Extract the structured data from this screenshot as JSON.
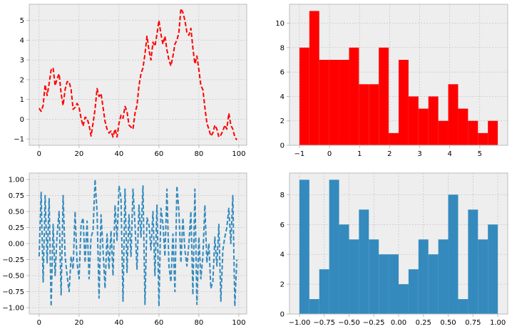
{
  "colors": {
    "red": "#ff0000",
    "blue": "#348abd",
    "panel_bg": "#eeeeee",
    "grid": "#b2b2b2",
    "axis": "#bcbcbc"
  },
  "chart_data": [
    {
      "type": "line",
      "title": "",
      "xlabel": "",
      "ylabel": "",
      "xlim": [
        -4.95,
        103.95
      ],
      "ylim": [
        -1.32,
        5.82
      ],
      "grid": true,
      "legend": "none",
      "x_ticks": [
        0,
        20,
        40,
        60,
        80,
        100
      ],
      "y_ticks": [
        -1,
        0,
        1,
        2,
        3,
        4,
        5
      ],
      "series": [
        {
          "color": "#ff0000",
          "style": "dashed",
          "x": [
            0,
            1,
            2,
            3,
            4,
            5,
            6,
            7,
            8,
            9,
            10,
            11,
            12,
            13,
            14,
            15,
            16,
            17,
            18,
            19,
            20,
            21,
            22,
            23,
            24,
            25,
            26,
            27,
            28,
            29,
            30,
            31,
            32,
            33,
            34,
            35,
            36,
            37,
            38,
            39,
            40,
            41,
            42,
            43,
            44,
            45,
            46,
            47,
            48,
            49,
            50,
            51,
            52,
            53,
            54,
            55,
            56,
            57,
            58,
            59,
            60,
            61,
            62,
            63,
            64,
            65,
            66,
            67,
            68,
            69,
            70,
            71,
            72,
            73,
            74,
            75,
            76,
            77,
            78,
            79,
            80,
            81,
            82,
            83,
            84,
            85,
            86,
            87,
            88,
            89,
            90,
            91,
            92,
            93,
            94,
            95,
            96,
            97,
            98,
            99
          ],
          "values": [
            0.55,
            0.4,
            0.7,
            1.75,
            1.2,
            1.8,
            2.5,
            2.6,
            1.7,
            2.05,
            2.3,
            1.3,
            0.7,
            1.5,
            1.9,
            1.9,
            1.5,
            0.5,
            0.6,
            0.8,
            0.6,
            0.05,
            -0.35,
            0.1,
            0.05,
            -0.3,
            -0.85,
            -0.2,
            0.5,
            1.55,
            1.15,
            1.3,
            0.6,
            -0.1,
            -0.5,
            -0.7,
            -0.6,
            -0.9,
            -0.5,
            -0.9,
            -0.2,
            0.2,
            0.05,
            0.65,
            0.4,
            -0.3,
            -0.4,
            -0.5,
            0.3,
            0.7,
            1.7,
            2.3,
            2.6,
            3.3,
            4.2,
            3.5,
            3.0,
            3.9,
            3.7,
            4.3,
            5.0,
            4.3,
            3.8,
            4.2,
            3.5,
            3.0,
            2.7,
            3.2,
            3.8,
            4.0,
            4.4,
            5.6,
            5.4,
            5.0,
            4.4,
            4.25,
            4.6,
            3.6,
            2.8,
            3.2,
            2.5,
            1.7,
            1.5,
            0.6,
            -0.2,
            -0.5,
            -0.85,
            -0.7,
            -0.3,
            -0.5,
            -0.9,
            -0.8,
            -0.6,
            -0.3,
            -0.5,
            0.3,
            -0.3,
            -0.5,
            -0.9,
            -1.05
          ]
        }
      ]
    },
    {
      "type": "bar",
      "title": "",
      "xlabel": "",
      "ylabel": "",
      "xlim": [
        -1.33,
        5.93
      ],
      "ylim": [
        0,
        11.55
      ],
      "grid": true,
      "legend": "none",
      "x_ticks": [
        -1,
        0,
        1,
        2,
        3,
        4,
        5
      ],
      "y_ticks": [
        0,
        2,
        4,
        6,
        8,
        10
      ],
      "bin_edges": [
        -1.0,
        -0.67,
        -0.34,
        -0.01,
        0.32,
        0.65,
        0.98,
        1.31,
        1.64,
        1.97,
        2.3,
        2.63,
        2.96,
        3.29,
        3.62,
        3.95,
        4.28,
        4.61,
        4.94,
        5.27,
        5.6
      ],
      "counts": [
        8,
        11,
        7,
        7,
        7,
        8,
        5,
        5,
        8,
        1,
        7,
        4,
        3,
        4,
        2,
        5,
        3,
        2,
        1,
        2
      ],
      "color": "#ff0000"
    },
    {
      "type": "line",
      "title": "",
      "xlabel": "",
      "ylabel": "",
      "xlim": [
        -4.95,
        103.95
      ],
      "ylim": [
        -1.1,
        1.1
      ],
      "grid": true,
      "legend": "none",
      "x_ticks": [
        0,
        20,
        40,
        60,
        80,
        100
      ],
      "y_ticks": [
        -1.0,
        -0.75,
        -0.5,
        -0.25,
        0.0,
        0.25,
        0.5,
        0.75,
        1.0
      ],
      "y_tick_labels": [
        "−1.00",
        "−0.75",
        "−0.50",
        "−0.25",
        "0.00",
        "0.25",
        "0.50",
        "0.75",
        "1.00"
      ],
      "series": [
        {
          "color": "#348abd",
          "style": "dashed",
          "x": [
            0,
            1,
            2,
            3,
            4,
            5,
            6,
            7,
            8,
            9,
            10,
            11,
            12,
            13,
            14,
            15,
            16,
            17,
            18,
            19,
            20,
            21,
            22,
            23,
            24,
            25,
            26,
            27,
            28,
            29,
            30,
            31,
            32,
            33,
            34,
            35,
            36,
            37,
            38,
            39,
            40,
            41,
            42,
            43,
            44,
            45,
            46,
            47,
            48,
            49,
            50,
            51,
            52,
            53,
            54,
            55,
            56,
            57,
            58,
            59,
            60,
            61,
            62,
            63,
            64,
            65,
            66,
            67,
            68,
            69,
            70,
            71,
            72,
            73,
            74,
            75,
            76,
            77,
            78,
            79,
            80,
            81,
            82,
            83,
            84,
            85,
            86,
            87,
            88,
            89,
            90,
            91,
            92,
            93,
            94,
            95,
            96,
            97,
            98,
            99
          ],
          "values": [
            -0.2,
            0.8,
            -0.6,
            0.75,
            -0.3,
            0.7,
            -0.98,
            0.3,
            -0.5,
            0.15,
            0.5,
            -0.8,
            0.75,
            -0.2,
            -0.5,
            -0.75,
            -0.2,
            -0.4,
            0.5,
            -0.3,
            -0.55,
            0.3,
            0.4,
            -0.3,
            0.35,
            -0.55,
            0.1,
            0.2,
            1.0,
            0.5,
            -0.85,
            0.45,
            -0.1,
            -0.7,
            0.15,
            -0.4,
            0.2,
            -0.5,
            0.6,
            0.05,
            0.9,
            0.7,
            -0.9,
            0.85,
            -0.45,
            0.45,
            -0.2,
            0.85,
            0.3,
            -0.4,
            0.6,
            0.1,
            0.9,
            -0.95,
            0.4,
            0.3,
            -0.1,
            0.5,
            -0.5,
            0.6,
            -0.98,
            0.55,
            0.3,
            -0.2,
            0.85,
            -0.35,
            -0.6,
            0.15,
            -0.75,
            0.9,
            0.5,
            -0.3,
            0.4,
            -0.1,
            -0.35,
            0.0,
            0.5,
            -0.8,
            0.85,
            -0.95,
            0.1,
            -0.55,
            -0.2,
            0.6,
            -0.3,
            0.0,
            -0.7,
            -0.6,
            0.1,
            -0.35,
            0.3,
            -0.9,
            -0.1,
            0.1,
            0.25,
            0.55,
            0.0,
            0.75,
            -0.98,
            -0.25
          ]
        }
      ]
    },
    {
      "type": "bar",
      "title": "",
      "xlabel": "",
      "ylabel": "",
      "xlim": [
        -1.1,
        1.1
      ],
      "ylim": [
        0,
        9.45
      ],
      "grid": true,
      "legend": "none",
      "x_ticks": [
        -1.0,
        -0.75,
        -0.5,
        -0.25,
        0.0,
        0.25,
        0.5,
        0.75,
        1.0
      ],
      "x_tick_labels": [
        "−1.00",
        "−0.75",
        "−0.50",
        "−0.25",
        "0.00",
        "0.25",
        "0.50",
        "0.75",
        "1.00"
      ],
      "y_ticks": [
        0,
        2,
        4,
        6,
        8
      ],
      "bin_edges": [
        -1.0,
        -0.9,
        -0.8,
        -0.7,
        -0.6,
        -0.5,
        -0.4,
        -0.3,
        -0.2,
        -0.1,
        0.0,
        0.1,
        0.2,
        0.3,
        0.4,
        0.5,
        0.6,
        0.7,
        0.8,
        0.9,
        1.0
      ],
      "counts": [
        9,
        1,
        3,
        9,
        6,
        5,
        7,
        5,
        4,
        4,
        2,
        3,
        5,
        4,
        5,
        8,
        1,
        7,
        5,
        6
      ],
      "color": "#348abd"
    }
  ]
}
